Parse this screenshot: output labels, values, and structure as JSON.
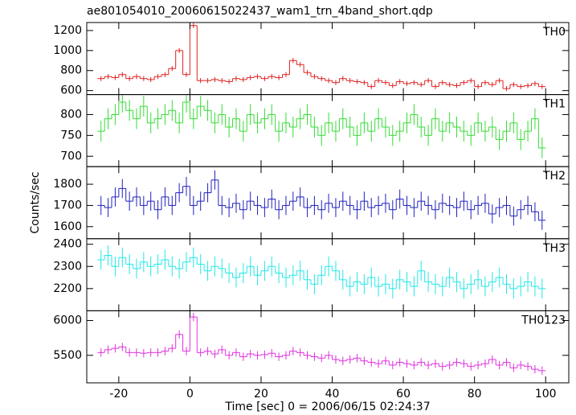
{
  "chart_data": {
    "type": "step",
    "title": "ae801054010_20060615022437_wam1_trn_4band_short.qdp",
    "x_label": "Time [sec] 0 = 2006/06/15 02:24:37",
    "y_label": "Counts/sec",
    "xlim": [
      -29,
      106.5
    ],
    "xticks": [
      -20,
      0,
      20,
      40,
      60,
      80,
      100
    ],
    "x": [
      -25,
      -23,
      -21,
      -19,
      -17,
      -15,
      -13,
      -11,
      -9,
      -7,
      -5,
      -3,
      -1,
      1,
      3,
      5,
      7,
      9,
      11,
      13,
      15,
      17,
      19,
      21,
      23,
      25,
      27,
      29,
      31,
      33,
      35,
      37,
      39,
      41,
      43,
      45,
      47,
      49,
      51,
      53,
      55,
      57,
      59,
      61,
      63,
      65,
      67,
      69,
      71,
      73,
      75,
      77,
      79,
      81,
      83,
      85,
      87,
      89,
      91,
      93,
      95,
      97,
      99
    ],
    "series": [
      {
        "name": "TH0",
        "color": "#e02020",
        "error": 25,
        "ylim": [
          560,
          1280
        ],
        "yticks": [
          600,
          800,
          1000,
          1200
        ],
        "values": [
          720,
          740,
          730,
          760,
          720,
          740,
          720,
          710,
          740,
          760,
          820,
          1000,
          760,
          1250,
          700,
          700,
          710,
          700,
          690,
          720,
          710,
          730,
          740,
          720,
          740,
          730,
          760,
          900,
          860,
          780,
          740,
          720,
          700,
          680,
          720,
          700,
          690,
          680,
          640,
          700,
          680,
          650,
          690,
          670,
          680,
          660,
          700,
          640,
          680,
          660,
          650,
          680,
          700,
          640,
          680,
          660,
          700,
          620,
          660,
          640,
          650,
          670,
          640
        ]
      },
      {
        "name": "TH1",
        "color": "#33dd33",
        "error": 25,
        "ylim": [
          675,
          848
        ],
        "yticks": [
          700,
          750,
          800
        ],
        "values": [
          760,
          790,
          800,
          830,
          810,
          790,
          820,
          780,
          790,
          800,
          810,
          780,
          830,
          790,
          820,
          810,
          780,
          800,
          770,
          790,
          760,
          800,
          780,
          790,
          800,
          760,
          780,
          770,
          790,
          800,
          770,
          750,
          780,
          760,
          790,
          770,
          750,
          780,
          760,
          790,
          770,
          750,
          760,
          780,
          800,
          770,
          750,
          790,
          760,
          780,
          770,
          760,
          750,
          780,
          760,
          770,
          740,
          760,
          780,
          740,
          760,
          790,
          720
        ]
      },
      {
        "name": "TH2",
        "color": "#2020c0",
        "error": 45,
        "ylim": [
          1543,
          1883
        ],
        "yticks": [
          1600,
          1700,
          1800
        ],
        "values": [
          1700,
          1690,
          1740,
          1780,
          1720,
          1740,
          1700,
          1720,
          1680,
          1740,
          1700,
          1760,
          1790,
          1700,
          1720,
          1760,
          1820,
          1700,
          1690,
          1710,
          1680,
          1720,
          1700,
          1690,
          1730,
          1680,
          1700,
          1720,
          1740,
          1690,
          1700,
          1680,
          1710,
          1690,
          1720,
          1700,
          1680,
          1720,
          1690,
          1700,
          1710,
          1680,
          1730,
          1700,
          1690,
          1720,
          1700,
          1680,
          1710,
          1700,
          1690,
          1720,
          1680,
          1700,
          1710,
          1660,
          1690,
          1700,
          1650,
          1680,
          1700,
          1670,
          1630
        ]
      },
      {
        "name": "TH3",
        "color": "#22e8e8",
        "error": 45,
        "ylim": [
          2100,
          2425
        ],
        "yticks": [
          2200,
          2300,
          2400
        ],
        "values": [
          2330,
          2350,
          2300,
          2340,
          2310,
          2290,
          2320,
          2300,
          2310,
          2330,
          2300,
          2290,
          2320,
          2340,
          2310,
          2280,
          2300,
          2290,
          2270,
          2250,
          2270,
          2300,
          2260,
          2280,
          2300,
          2270,
          2250,
          2260,
          2280,
          2240,
          2220,
          2260,
          2300,
          2280,
          2240,
          2210,
          2230,
          2220,
          2250,
          2210,
          2220,
          2200,
          2240,
          2230,
          2210,
          2280,
          2230,
          2220,
          2210,
          2250,
          2230,
          2200,
          2220,
          2240,
          2210,
          2230,
          2250,
          2220,
          2200,
          2210,
          2230,
          2210,
          2200
        ]
      },
      {
        "name": "TH0123",
        "color": "#e030e0",
        "error": 60,
        "ylim": [
          5105,
          6140
        ],
        "yticks": [
          5500,
          6000
        ],
        "values": [
          5540,
          5580,
          5600,
          5620,
          5540,
          5540,
          5530,
          5540,
          5540,
          5560,
          5600,
          5800,
          5560,
          6050,
          5540,
          5560,
          5520,
          5580,
          5500,
          5540,
          5480,
          5520,
          5500,
          5510,
          5530,
          5480,
          5500,
          5560,
          5540,
          5500,
          5480,
          5460,
          5500,
          5440,
          5420,
          5440,
          5460,
          5420,
          5400,
          5380,
          5420,
          5360,
          5400,
          5380,
          5360,
          5400,
          5360,
          5380,
          5340,
          5360,
          5400,
          5380,
          5340,
          5360,
          5380,
          5440,
          5360,
          5400,
          5320,
          5360,
          5340,
          5300,
          5280
        ]
      }
    ]
  }
}
